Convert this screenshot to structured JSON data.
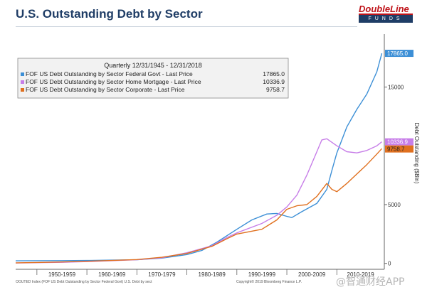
{
  "page": {
    "title": "U.S. Outstanding Debt by Sector",
    "logo_top": "DoubleLine",
    "logo_bottom": "FUNDS",
    "footer_left": "OOUTED Index (FOF US Debt Outstanding by Sector Federal Govt) U.S. Debt by sect",
    "footer_right": "Copyright© 2019 Bloomberg Finance L.P.",
    "watermark": "@智通财经APP"
  },
  "colors": {
    "title": "#1f3d66",
    "federal": "#3c8fd6",
    "mortgage": "#c77ee8",
    "corporate": "#e0701f",
    "axis": "#666666"
  },
  "chart_data": {
    "type": "line",
    "title": "Quarterly 12/31/1945 - 12/31/2018",
    "ylabel": "Debt Outstanding ($Bln)",
    "xlabel": "",
    "x_range": [
      1945.75,
      2019.5
    ],
    "ylim": [
      -500,
      19500
    ],
    "y_ticks": [
      0,
      5000,
      15000
    ],
    "x_tick_labels": [
      "1950-1959",
      "1960-1969",
      "1970-1979",
      "1980-1989",
      "1990-1999",
      "2000-2009",
      "2010-2019"
    ],
    "legend_position": "top-left",
    "series": [
      {
        "name": "FOF US Debt Outstanding by Sector Federal Govt - Last Price",
        "last_price": "17865.0",
        "color_key": "federal",
        "x": [
          1945.75,
          1950,
          1955,
          1960,
          1965,
          1970,
          1975,
          1980,
          1983,
          1986,
          1990,
          1993,
          1996,
          1998,
          2000,
          2001,
          2003,
          2006,
          2008,
          2009,
          2010,
          2012,
          2014,
          2016,
          2018,
          2019
        ],
        "y": [
          220,
          230,
          240,
          250,
          280,
          310,
          450,
          750,
          1100,
          1800,
          2900,
          3700,
          4200,
          4250,
          4000,
          3900,
          4400,
          5100,
          6300,
          7900,
          9400,
          11600,
          13100,
          14400,
          16300,
          17865
        ]
      },
      {
        "name": "FOF US Debt Outstanding by Sector Home Mortgage - Last Price",
        "last_price": "10336.9",
        "color_key": "mortgage",
        "x": [
          1945.75,
          1950,
          1955,
          1960,
          1965,
          1970,
          1975,
          1980,
          1985,
          1988,
          1990,
          1995,
          1998,
          2000,
          2002,
          2004,
          2006,
          2007,
          2008,
          2010,
          2012,
          2014,
          2016,
          2018,
          2019
        ],
        "y": [
          30,
          60,
          90,
          150,
          230,
          310,
          480,
          910,
          1500,
          2200,
          2600,
          3400,
          4100,
          4800,
          5800,
          7500,
          9500,
          10500,
          10600,
          10000,
          9500,
          9400,
          9600,
          10000,
          10337
        ]
      },
      {
        "name": "FOF US Debt Outstanding by Sector Corporate - Last Price",
        "last_price": "9758.7",
        "color_key": "corporate",
        "x": [
          1945.75,
          1950,
          1955,
          1960,
          1965,
          1970,
          1975,
          1980,
          1985,
          1988,
          1990,
          1995,
          1998,
          2000,
          2002,
          2004,
          2006,
          2008,
          2009,
          2010,
          2012,
          2014,
          2016,
          2018,
          2019
        ],
        "y": [
          50,
          80,
          120,
          180,
          250,
          330,
          520,
          850,
          1450,
          2100,
          2500,
          2900,
          3700,
          4600,
          4900,
          5000,
          5700,
          6800,
          6300,
          6100,
          6800,
          7600,
          8400,
          9300,
          9759
        ]
      }
    ]
  }
}
